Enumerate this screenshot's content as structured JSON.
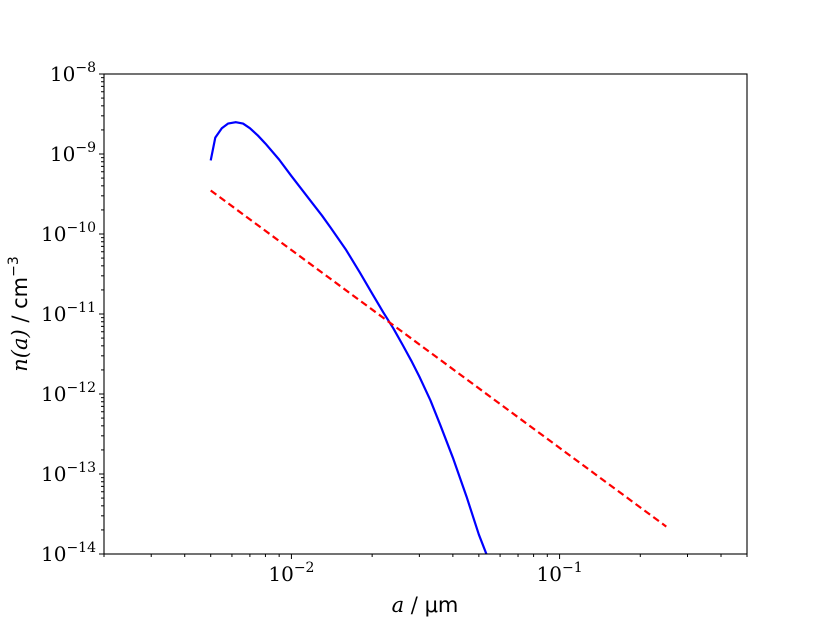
{
  "chart_data": {
    "type": "line",
    "title": "",
    "xlabel": {
      "var": "a",
      "sep": " / ",
      "unit": "μm"
    },
    "ylabel": {
      "var": "n(a)",
      "sep": " / ",
      "unit": "cm",
      "unit_exp": "−3"
    },
    "x_scale": "log",
    "y_scale": "log",
    "xlim": [
      0.002,
      0.5
    ],
    "ylim": [
      1e-14,
      1e-08
    ],
    "grid": false,
    "legend": "none",
    "x_ticks": [
      {
        "value": 0.01,
        "base": "10",
        "exp": "−2"
      },
      {
        "value": 0.1,
        "base": "10",
        "exp": "−1"
      }
    ],
    "y_ticks": [
      {
        "value": 1e-14,
        "base": "10",
        "exp": "−14"
      },
      {
        "value": 1e-13,
        "base": "10",
        "exp": "−13"
      },
      {
        "value": 1e-12,
        "base": "10",
        "exp": "−12"
      },
      {
        "value": 1e-11,
        "base": "10",
        "exp": "−11"
      },
      {
        "value": 1e-10,
        "base": "10",
        "exp": "−10"
      },
      {
        "value": 1e-09,
        "base": "10",
        "exp": "−9"
      },
      {
        "value": 1e-08,
        "base": "10",
        "exp": "−8"
      }
    ],
    "series": [
      {
        "color": "#0000ff",
        "style": "solid",
        "x": [
          0.005,
          0.0052,
          0.0055,
          0.0058,
          0.0062,
          0.0066,
          0.007,
          0.0075,
          0.008,
          0.009,
          0.01,
          0.011,
          0.012,
          0.013,
          0.014,
          0.016,
          0.018,
          0.02,
          0.022,
          0.024,
          0.026,
          0.028,
          0.03,
          0.033,
          0.036,
          0.04,
          0.045,
          0.05,
          0.054
        ],
        "y": [
          8.3e-10,
          1.6e-09,
          2.1e-09,
          2.4e-09,
          2.5e-09,
          2.4e-09,
          2.1e-09,
          1.7e-09,
          1.35e-09,
          8.5e-10,
          5.3e-10,
          3.5e-10,
          2.4e-10,
          1.7e-10,
          1.2e-10,
          6.3e-11,
          3.3e-11,
          1.8e-11,
          1.05e-11,
          6.6e-12,
          4.1e-12,
          2.6e-12,
          1.65e-12,
          8.3e-13,
          4e-13,
          1.6e-13,
          5.2e-14,
          1.75e-14,
          9e-15
        ]
      },
      {
        "color": "#ff0000",
        "style": "dashed",
        "x": [
          0.005,
          0.25
        ],
        "y": [
          3.5e-10,
          2.2e-14
        ]
      }
    ]
  }
}
